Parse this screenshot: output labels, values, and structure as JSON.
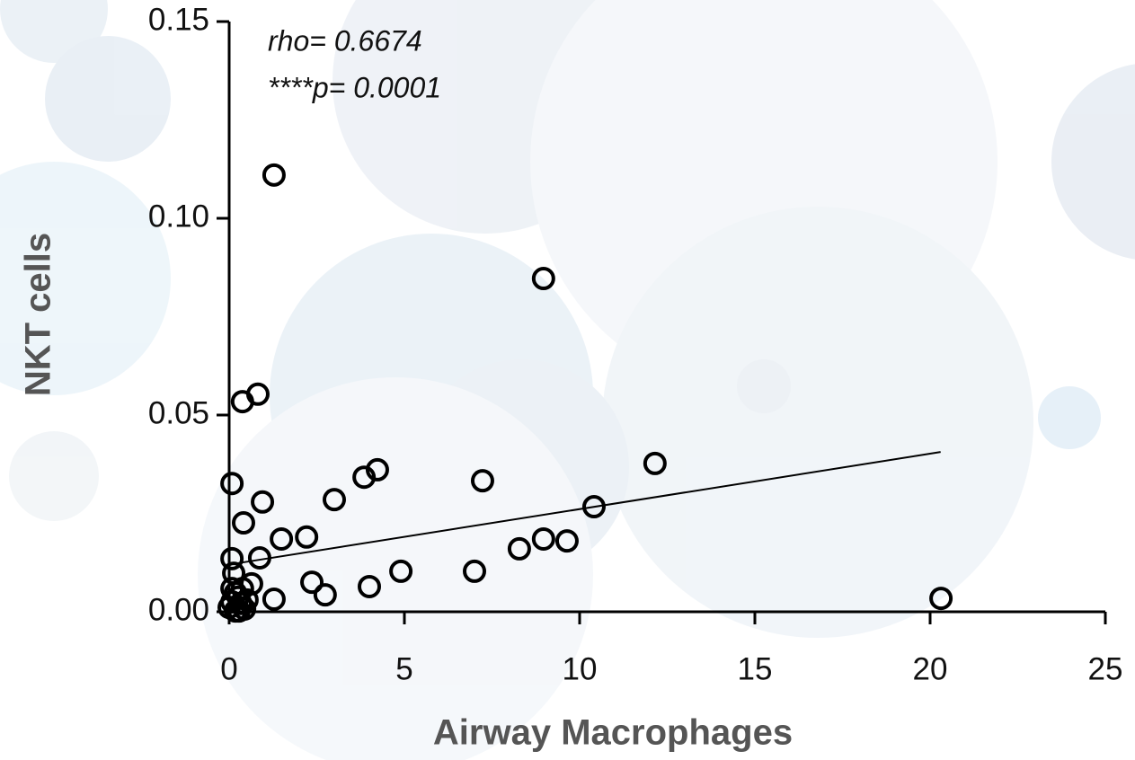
{
  "chart_data": {
    "type": "scatter",
    "xlabel": "Airway Macrophages",
    "ylabel": "NKT cells",
    "annotations": [
      "rho= 0.6674",
      "****p= 0.0001"
    ],
    "x": [
      1.28,
      8.97,
      0.82,
      0.38,
      0.08,
      0.95,
      0.41,
      3.0,
      3.85,
      4.23,
      7.23,
      12.15,
      10.41,
      8.28,
      8.97,
      9.64,
      1.49,
      2.21,
      0.87,
      0.08,
      0.13,
      2.36,
      2.74,
      1.28,
      4.0,
      4.9,
      7.0,
      20.31,
      0,
      0.08,
      0.18,
      0.26,
      0.33,
      0.44,
      0.18,
      0.51,
      0.64,
      0.08,
      0.38,
      0.28
    ],
    "values": [
      0.111,
      0.0847,
      0.0553,
      0.0534,
      0.0326,
      0.0279,
      0.0226,
      0.0285,
      0.0342,
      0.0361,
      0.0333,
      0.0377,
      0.0267,
      0.016,
      0.0185,
      0.018,
      0.0185,
      0.019,
      0.0137,
      0.0135,
      0.0098,
      0.0075,
      0.0043,
      0.0032,
      0.0064,
      0.0103,
      0.0103,
      0.0034,
      0.0011,
      0.0025,
      0.0048,
      0.0037,
      0.0021,
      0.0007,
      0.0002,
      0.003,
      0.0071,
      0.0059,
      0.0059,
      0.0002
    ],
    "color": "#000000",
    "fit_line": {
      "x": [
        0,
        20.3
      ],
      "y": [
        0.012,
        0.0406
      ]
    },
    "xlim": [
      0,
      25
    ],
    "xticks": [
      0,
      5,
      10,
      15,
      20,
      25
    ],
    "ylim": [
      0,
      0.15
    ],
    "yticks": [
      {
        "value": 0,
        "label": "0.00"
      },
      0.05,
      {
        "value": 0.1,
        "label": "0.10"
      },
      0.15
    ]
  }
}
